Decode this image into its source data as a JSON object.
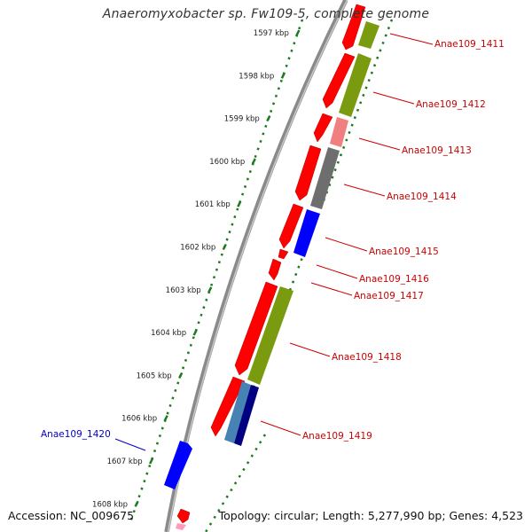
{
  "title": "Anaeromyxobacter sp. Fw109-5, complete genome",
  "footer": {
    "accession": "Accession: NC_009675",
    "topology": "Topology: circular; Length: 5,277,990 bp; Genes: 4,523"
  },
  "kbp_ticks": [
    "1597 kbp",
    "1598 kbp",
    "1599 kbp",
    "1600 kbp",
    "1601 kbp",
    "1602 kbp",
    "1603 kbp",
    "1604 kbp",
    "1605 kbp",
    "1606 kbp",
    "1607 kbp",
    "1608 kbp"
  ],
  "colors": {
    "forward_gene": "#ff0000",
    "olive_gene": "#7a9a10",
    "pink_gene": "#f08080",
    "gray_gene": "#6e6e6e",
    "blue_gene": "#0000ff",
    "steel_gene": "#4682b4",
    "navy_gene": "#000080",
    "label_red": "#cc0000",
    "label_blue": "#0000cc",
    "tick_green": "#1e7a1e",
    "backbone": "#8a8a8a"
  },
  "gene_labels": [
    {
      "name": "Anae109_1411",
      "color": "red"
    },
    {
      "name": "Anae109_1412",
      "color": "red"
    },
    {
      "name": "Anae109_1413",
      "color": "red"
    },
    {
      "name": "Anae109_1414",
      "color": "red"
    },
    {
      "name": "Anae109_1415",
      "color": "red"
    },
    {
      "name": "Anae109_1416",
      "color": "red"
    },
    {
      "name": "Anae109_1417",
      "color": "red"
    },
    {
      "name": "Anae109_1418",
      "color": "red"
    },
    {
      "name": "Anae109_1419",
      "color": "red"
    },
    {
      "name": "Anae109_1420",
      "color": "blue"
    }
  ]
}
